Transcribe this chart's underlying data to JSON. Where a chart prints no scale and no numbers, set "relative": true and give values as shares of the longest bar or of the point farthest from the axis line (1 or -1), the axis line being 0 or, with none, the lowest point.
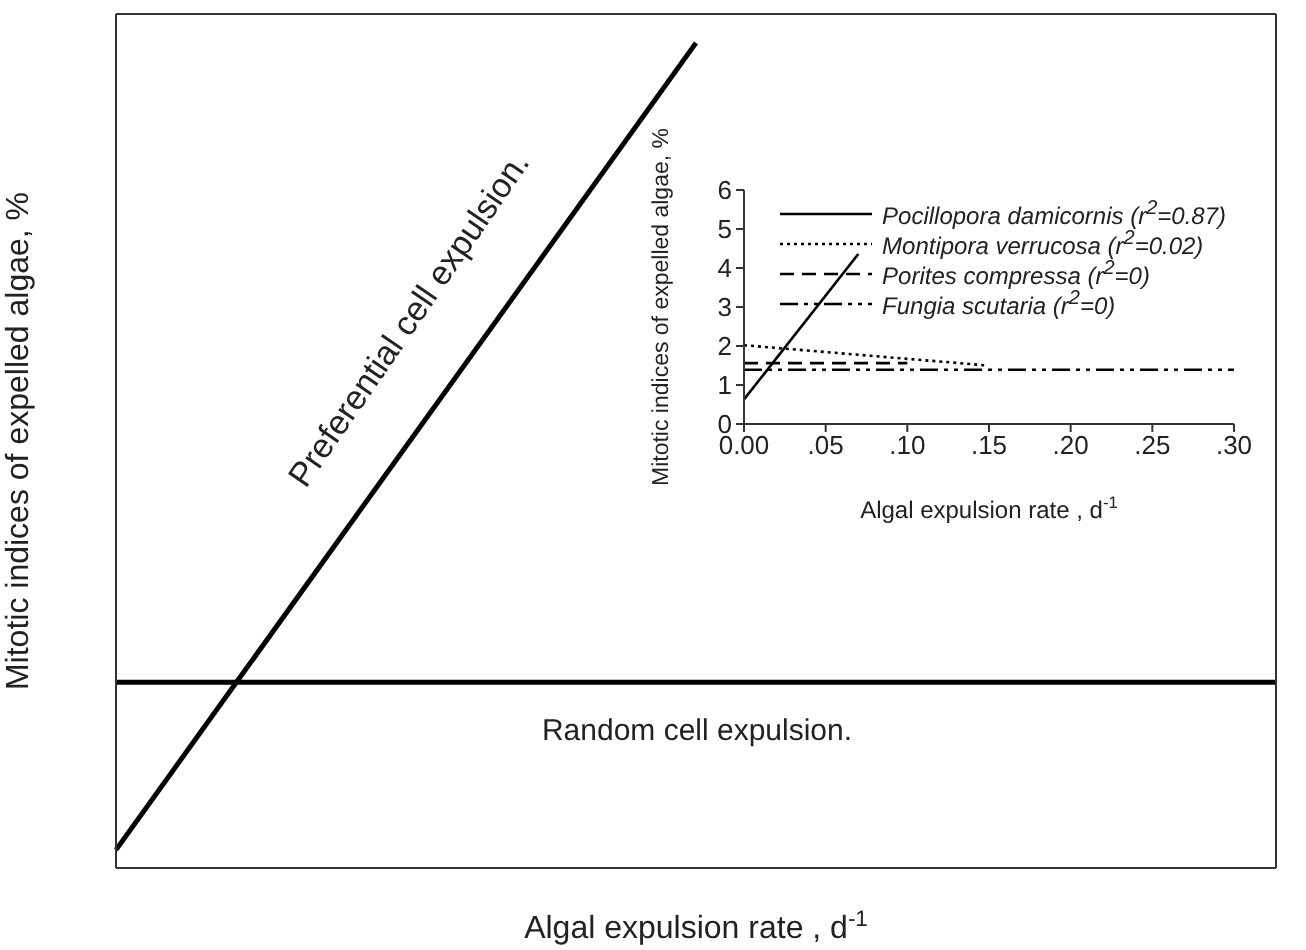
{
  "chart_data": [
    {
      "type": "line",
      "relative": true,
      "xlabel": "Algal expulsion rate , d$^{-1}$",
      "ylabel": "Mitotic indices of expelled algae, %",
      "categories": [
        null,
        null,
        null,
        null,
        null,
        null,
        null,
        null,
        null,
        null,
        null,
        null,
        null
      ],
      "series": [
        {
          "color": "#000000",
          "values": [
            0.022,
            null,
            null,
            null,
            null,
            null,
            1,
            null,
            null,
            null,
            null,
            null,
            null
          ]
        },
        {
          "color": "#000000",
          "values": [
            0.225,
            0.225,
            0.225,
            0.225,
            0.225,
            0.225,
            0.225,
            0.225,
            0.225,
            0.225,
            0.225,
            0.225,
            0.225
          ]
        }
      ],
      "annotations": [
        "Preferential cell expulsion.",
        "Random cell expulsion."
      ]
    },
    {
      "type": "line",
      "xlabel": "Algal expulsion rate , d$^{-1}$",
      "ylabel": "Mitotic indices of expelled algae, %",
      "xlim": [
        0,
        0.3
      ],
      "xticks": [
        {
          "value": 0,
          "label": "0.00"
        },
        {
          "value": 0.05,
          "label": ".05"
        },
        {
          "value": 0.1,
          "label": ".10"
        },
        {
          "value": 0.15,
          "label": ".15"
        },
        {
          "value": 0.2,
          "label": ".20"
        },
        {
          "value": 0.25,
          "label": ".25"
        },
        {
          "value": 0.3,
          "label": ".30"
        }
      ],
      "ylim": [
        0,
        6
      ],
      "yticks": [
        0,
        1,
        2,
        3,
        4,
        5,
        6
      ],
      "legend": "top right",
      "series": [
        {
          "name": "Pocillopora damicornis (r$^{2}$=0.87)",
          "color": "#000000",
          "line_style": "solid",
          "x": [
            0,
            0.07
          ],
          "values": [
            0.63,
            4.36
          ]
        },
        {
          "name": "Montipora verrucosa (r$^{2}$=0.02)",
          "color": "#000000",
          "line_style": "dotted",
          "x": [
            0,
            0.149
          ],
          "values": [
            2.02,
            1.5
          ]
        },
        {
          "name": "Porites compressa (r$^{2}$=0)",
          "color": "#000000",
          "line_style": "dashed",
          "x": [
            0,
            0.1
          ],
          "values": [
            1.56,
            1.56
          ]
        },
        {
          "name": "Fungia scutaria (r$^{2}$=0)",
          "color": "#000000",
          "line_style": "dashdot",
          "x": [
            0,
            0.3
          ],
          "values": [
            1.39,
            1.39
          ]
        }
      ]
    }
  ]
}
